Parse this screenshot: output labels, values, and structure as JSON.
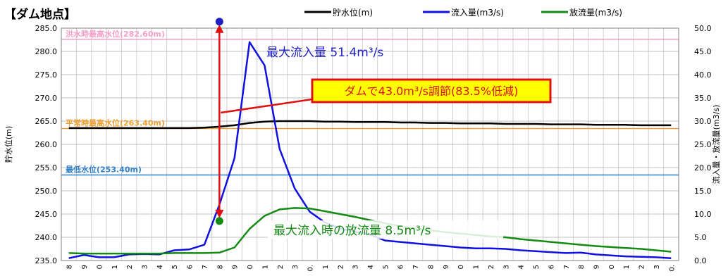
{
  "chart_data": {
    "type": "line",
    "title": "【ダム地点】",
    "x": [
      "8",
      "9",
      "0",
      "1",
      "2",
      "3",
      "4",
      "5",
      "6",
      "7",
      "8",
      "9",
      "0",
      "1",
      "2",
      "3",
      "0.",
      "1",
      "2",
      "3",
      "4",
      "5",
      "6",
      "7",
      "8",
      "9",
      "0",
      "1",
      "2",
      "3",
      "4",
      "5",
      "6",
      "7",
      "8",
      "9",
      "0",
      "1",
      "2",
      "3",
      "0."
    ],
    "y_left": {
      "label": "貯水位(m)",
      "ylim": [
        235.0,
        285.0
      ],
      "ticks": [
        "235.0",
        "240.0",
        "245.0",
        "250.0",
        "255.0",
        "260.0",
        "265.0",
        "270.0",
        "275.0",
        "280.0",
        "285.0"
      ]
    },
    "y_right": {
      "label": "流入量・放流量(m3/s)",
      "ylim": [
        0.0,
        50.0
      ],
      "ticks": [
        "0.0",
        "5.0",
        "10.0",
        "15.0",
        "20.0",
        "25.0",
        "30.0",
        "35.0",
        "40.0",
        "45.0",
        "50.0"
      ]
    },
    "grid": true,
    "legend_position": "top",
    "series": [
      {
        "name": "貯水位(m)",
        "axis": "left",
        "color": "#000000",
        "values": [
          263.5,
          263.5,
          263.5,
          263.5,
          263.5,
          263.5,
          263.5,
          263.5,
          263.5,
          263.6,
          263.8,
          264.1,
          264.6,
          264.9,
          265.0,
          265.0,
          265.0,
          264.9,
          264.9,
          264.8,
          264.8,
          264.8,
          264.7,
          264.7,
          264.6,
          264.6,
          264.5,
          264.5,
          264.5,
          264.4,
          264.4,
          264.4,
          264.3,
          264.3,
          264.3,
          264.2,
          264.2,
          264.2,
          264.1,
          264.1,
          264.1
        ]
      },
      {
        "name": "流入量(m3/s)",
        "axis": "right",
        "color": "#1010e0",
        "values": [
          0.5,
          1.2,
          0.7,
          0.7,
          1.3,
          1.4,
          1.3,
          2.2,
          2.4,
          3.4,
          12.0,
          22.0,
          47.0,
          42.0,
          24.0,
          15.5,
          10.5,
          8.2,
          6.9,
          6.2,
          5.6,
          4.3,
          4.0,
          3.7,
          3.4,
          3.1,
          2.8,
          2.6,
          2.6,
          2.5,
          2.2,
          2.0,
          1.8,
          1.6,
          1.7,
          1.3,
          1.1,
          0.9,
          0.8,
          0.7,
          0.5
        ]
      },
      {
        "name": "放流量(m3/s)",
        "axis": "right",
        "color": "#138a13",
        "values": [
          1.6,
          1.5,
          1.5,
          1.5,
          1.5,
          1.5,
          1.5,
          1.6,
          1.6,
          1.6,
          1.7,
          2.8,
          6.8,
          9.6,
          11.0,
          11.3,
          11.2,
          10.6,
          10.0,
          9.4,
          8.7,
          8.0,
          7.4,
          6.9,
          6.5,
          6.1,
          5.8,
          5.5,
          5.2,
          5.0,
          4.6,
          4.3,
          4.0,
          3.7,
          3.4,
          3.1,
          2.9,
          2.7,
          2.5,
          2.2,
          1.9
        ]
      }
    ],
    "reference_lines": [
      {
        "label": "洪水時最高水位(282.60m)",
        "value": 282.6,
        "color": "#f5a0c8"
      },
      {
        "label": "平常時最高水位(263.40m)",
        "value": 263.4,
        "color": "#f0a030"
      },
      {
        "label": "最低水位(253.40m)",
        "value": 253.4,
        "color": "#2f80c8"
      }
    ],
    "annotations": {
      "peak_inflow": {
        "text": "最大流入量 51.4m³/s",
        "x_index": 10,
        "value": 51.4,
        "color": "#2020c0"
      },
      "peak_outflow": {
        "text": "最大流入時の放流量 8.5m³/s",
        "x_index": 10,
        "value": 8.5,
        "color": "#138a13"
      },
      "regulation": {
        "text": "ダムで43.0m³/s調節(83.5%低減)",
        "border_color": "#e01010",
        "fill_color": "#ffff00",
        "text_color": "#e01010"
      }
    }
  }
}
